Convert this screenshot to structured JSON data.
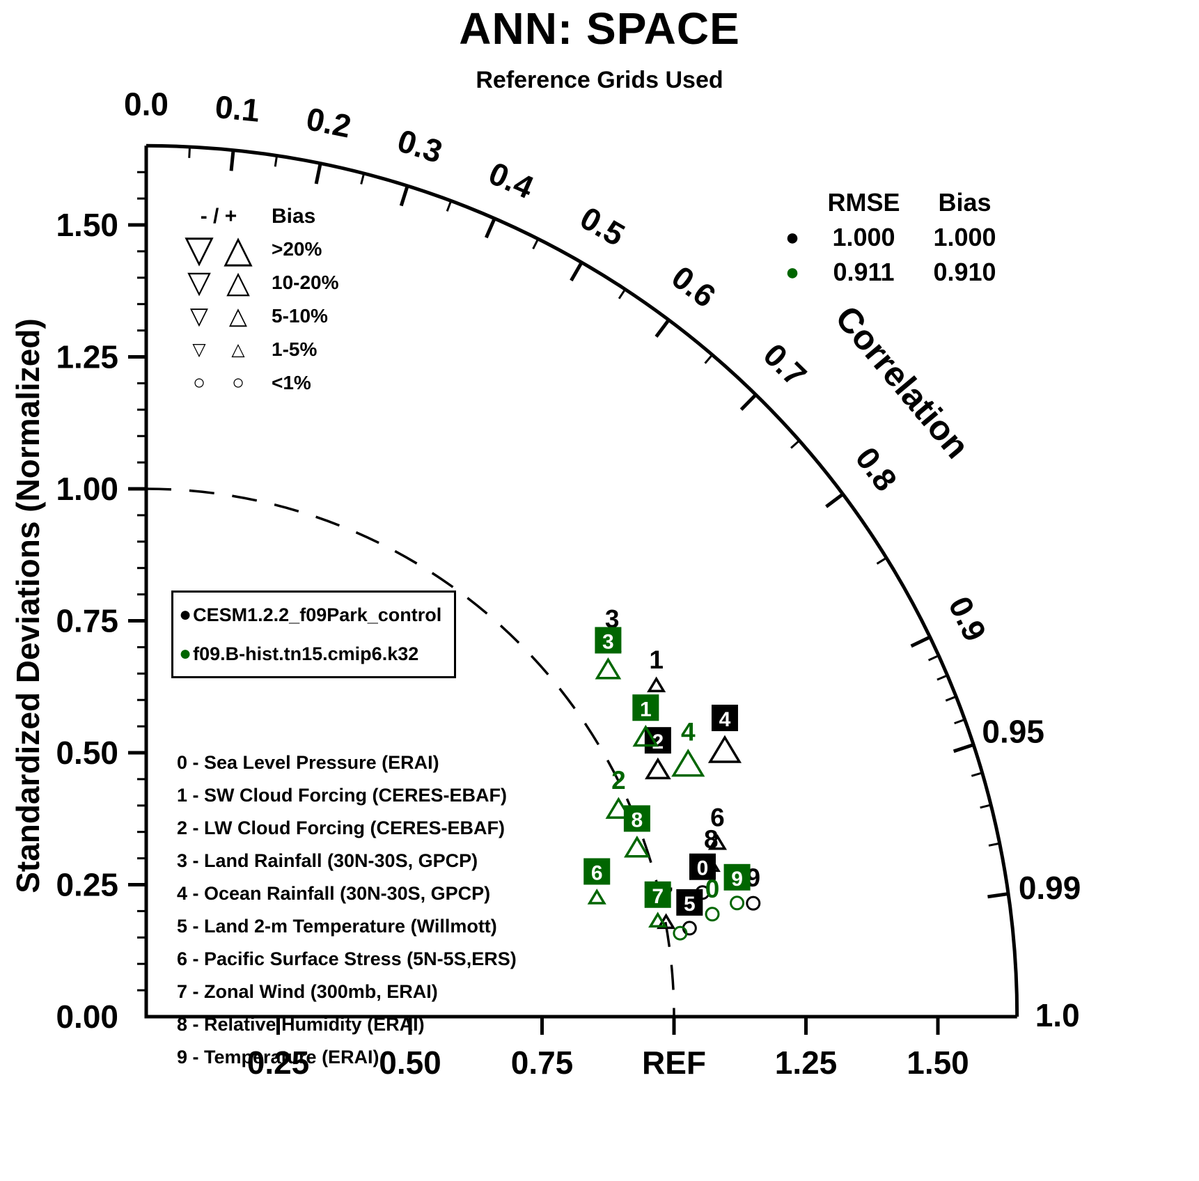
{
  "page": {
    "title": "ANN: SPACE",
    "subtitle": "Reference Grids Used"
  },
  "axes": {
    "y_label": "Standardized Deviations (Normalized)",
    "y_tick_labels": [
      "0.00",
      "0.25",
      "0.50",
      "0.75",
      "1.00",
      "1.25",
      "1.50"
    ],
    "x_tick_labels": [
      "0.25",
      "0.50",
      "0.75",
      "REF",
      "1.25",
      "1.50"
    ],
    "corr_axis_label": "Correlation",
    "corr_major": [
      {
        "v": 0.0,
        "label": "0.0"
      },
      {
        "v": 0.1,
        "label": "0.1"
      },
      {
        "v": 0.2,
        "label": "0.2"
      },
      {
        "v": 0.3,
        "label": "0.3"
      },
      {
        "v": 0.4,
        "label": "0.4"
      },
      {
        "v": 0.5,
        "label": "0.5"
      },
      {
        "v": 0.6,
        "label": "0.6"
      },
      {
        "v": 0.7,
        "label": "0.7"
      },
      {
        "v": 0.8,
        "label": "0.8"
      },
      {
        "v": 0.9,
        "label": "0.9"
      },
      {
        "v": 0.95,
        "label": "0.95"
      },
      {
        "v": 0.99,
        "label": "0.99"
      },
      {
        "v": 1.0,
        "label": "1.0"
      }
    ],
    "corr_minor": [
      0.05,
      0.15,
      0.25,
      0.35,
      0.45,
      0.55,
      0.65,
      0.75,
      0.85,
      0.91,
      0.92,
      0.93,
      0.94,
      0.96,
      0.97,
      0.98
    ]
  },
  "bias_legend": {
    "cols": "- / +",
    "title": "Bias",
    "rows": [
      {
        "minus": "▽",
        "plus": "△",
        "label": ">20%"
      },
      {
        "minus": "▽",
        "plus": "△",
        "label": "10-20%"
      },
      {
        "minus": "▽",
        "plus": "△",
        "label": "5-10%"
      },
      {
        "minus": "▽",
        "plus": "△",
        "label": "1-5%"
      },
      {
        "minus": "○",
        "plus": "○",
        "label": "<1%"
      }
    ]
  },
  "stats_table": {
    "headers": [
      "RMSE",
      "Bias"
    ],
    "rows": [
      {
        "dot": "●",
        "color": "#000000",
        "rmse": "1.000",
        "bias": "1.000"
      },
      {
        "dot": "●",
        "color": "#006600",
        "rmse": "0.911",
        "bias": "0.910"
      }
    ]
  },
  "case_legend": {
    "rows": [
      {
        "dot": "●",
        "color": "#000000",
        "name": "CESM1.2.2_f09Park_control"
      },
      {
        "dot": "●",
        "color": "#006600",
        "name": "f09.B-hist.tn15.cmip6.k32"
      }
    ]
  },
  "variables": [
    "0 - Sea Level Pressure (ERAI)",
    "1 - SW Cloud Forcing (CERES-EBAF)",
    "2 - LW Cloud Forcing (CERES-EBAF)",
    "3 - Land Rainfall (30N-30S, GPCP)",
    "4 - Ocean Rainfall (30N-30S, GPCP)",
    "5 - Land 2-m Temperature (Willmott)",
    "6 - Pacific Surface Stress (5N-5S,ERS)",
    "7 - Zonal Wind (300mb, ERAI)",
    "8 - Relative Humidity (ERAI)",
    "9 - Temperature (ERAI)"
  ],
  "chart_data": {
    "type": "taylor",
    "title": "ANN: SPACE",
    "std_ref": 1.0,
    "std_max": 1.65,
    "ref_label": "REF",
    "series": [
      {
        "name": "CESM1.2.2_f09Park_control",
        "color": "#000000",
        "points": [
          {
            "var": "0",
            "corr": 0.976,
            "std": 1.08,
            "bias": "<1%",
            "label_style": "boxed",
            "label_visible": true
          },
          {
            "var": "1",
            "corr": 0.839,
            "std": 1.152,
            "bias": "1-5%",
            "sign": "+",
            "label_style": "plain",
            "label_visible": true
          },
          {
            "var": "2",
            "corr": 0.901,
            "std": 1.076,
            "bias": "5-10%",
            "sign": "+",
            "label_style": "boxed",
            "label_visible": true
          },
          {
            "var": "3",
            "corr": 0.782,
            "std": 1.129,
            "bias": "1-5%",
            "sign": "+",
            "label_style": "plain",
            "label_visible": true
          },
          {
            "var": "4",
            "corr": 0.909,
            "std": 1.206,
            "bias": "10-20%",
            "sign": "+",
            "label_style": "boxed",
            "label_visible": true
          },
          {
            "var": "5",
            "corr": 0.987,
            "std": 1.043,
            "bias": "<1%",
            "label_style": "boxed",
            "label_visible": true
          },
          {
            "var": "6",
            "corr": 0.957,
            "std": 1.131,
            "bias": "1-5%",
            "sign": "+",
            "label_style": "plain",
            "label_visible": true
          },
          {
            "var": "7",
            "corr": 0.984,
            "std": 1.001,
            "bias": "1-5%",
            "sign": "+",
            "label_style": "plain",
            "label_visible": true
          },
          {
            "var": "8",
            "corr": 0.966,
            "std": 1.108,
            "bias": "1-5%",
            "sign": "+",
            "label_style": "plain",
            "label_visible": true
          },
          {
            "var": "9",
            "corr": 0.983,
            "std": 1.17,
            "bias": "<1%",
            "label_style": "plain",
            "label_visible": true
          }
        ]
      },
      {
        "name": "f09.B-hist.tn15.cmip6.k32",
        "color": "#006600",
        "points": [
          {
            "var": "0",
            "corr": 0.984,
            "std": 1.09,
            "bias": "<1%",
            "label_style": "plain",
            "label_visible": true
          },
          {
            "var": "1",
            "corr": 0.873,
            "std": 1.084,
            "bias": "5-10%",
            "sign": "+",
            "label_style": "boxed",
            "label_visible": true
          },
          {
            "var": "2",
            "corr": 0.916,
            "std": 0.977,
            "bias": "5-10%",
            "sign": "+",
            "label_style": "plain",
            "label_visible": true
          },
          {
            "var": "3",
            "corr": 0.8,
            "std": 1.094,
            "bias": "5-10%",
            "sign": "+",
            "label_style": "boxed",
            "label_visible": true
          },
          {
            "var": "4",
            "corr": 0.907,
            "std": 1.132,
            "bias": "10-20%",
            "sign": "+",
            "label_style": "plain",
            "label_visible": true
          },
          {
            "var": "5",
            "corr": 0.988,
            "std": 1.024,
            "bias": "<1%",
            "label_style": "plain",
            "label_visible": false
          },
          {
            "var": "6",
            "corr": 0.967,
            "std": 0.883,
            "bias": "1-5%",
            "sign": "+",
            "label_style": "boxed",
            "label_visible": true
          },
          {
            "var": "7",
            "corr": 0.983,
            "std": 0.986,
            "bias": "1-5%",
            "sign": "+",
            "label_style": "boxed",
            "label_visible": true
          },
          {
            "var": "8",
            "corr": 0.946,
            "std": 0.983,
            "bias": "5-10%",
            "sign": "+",
            "label_style": "boxed",
            "label_visible": true
          },
          {
            "var": "9",
            "corr": 0.982,
            "std": 1.14,
            "bias": "<1%",
            "label_style": "boxed",
            "label_visible": true
          }
        ]
      }
    ]
  }
}
